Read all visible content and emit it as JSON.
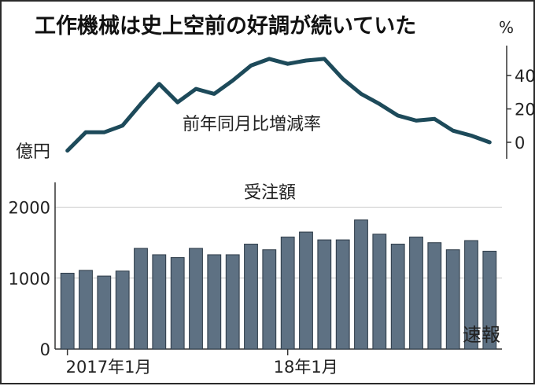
{
  "title": "工作機械は史上空前の好調が続いていた",
  "title_unit": "%",
  "colors": {
    "line": "#1d4a5a",
    "bar": "#5e7183",
    "bar_edge": "#2c3a47",
    "axis": "#333333",
    "grid": "#c8c8c8"
  },
  "chart_data": [
    {
      "type": "line",
      "label": "前年同月比増減率",
      "unit": "%",
      "ylim": [
        -8,
        57
      ],
      "yticks": [
        "40",
        "20",
        "0"
      ],
      "x": [
        "2017-01",
        "2017-02",
        "2017-03",
        "2017-04",
        "2017-05",
        "2017-06",
        "2017-07",
        "2017-08",
        "2017-09",
        "2017-10",
        "2017-11",
        "2017-12",
        "2018-01",
        "2018-02",
        "2018-03",
        "2018-04",
        "2018-05",
        "2018-06",
        "2018-07",
        "2018-08",
        "2018-09",
        "2018-10",
        "2018-11",
        "2018-12"
      ],
      "values": [
        -5,
        6,
        6,
        10,
        23,
        35,
        24,
        32,
        29,
        37,
        46,
        50,
        47,
        49,
        50,
        38,
        29,
        23,
        16,
        13,
        14,
        7,
        4,
        0
      ]
    },
    {
      "type": "bar",
      "label": "受注額",
      "unit": "億円",
      "ylim": [
        0,
        2350
      ],
      "yticks": [
        "2000",
        "1000",
        "0"
      ],
      "x": [
        "2017-01",
        "2017-02",
        "2017-03",
        "2017-04",
        "2017-05",
        "2017-06",
        "2017-07",
        "2017-08",
        "2017-09",
        "2017-10",
        "2017-11",
        "2017-12",
        "2018-01",
        "2018-02",
        "2018-03",
        "2018-04",
        "2018-05",
        "2018-06",
        "2018-07",
        "2018-08",
        "2018-09",
        "2018-10",
        "2018-11",
        "2018-12"
      ],
      "values": [
        1070,
        1110,
        1030,
        1100,
        1420,
        1330,
        1290,
        1420,
        1330,
        1330,
        1480,
        1400,
        1580,
        1650,
        1540,
        1540,
        1820,
        1620,
        1480,
        1580,
        1500,
        1400,
        1530,
        1380
      ],
      "x_tick_labels": [
        "2017年1月",
        "18年1月"
      ],
      "last_bar_note": "速報"
    }
  ],
  "unit_yen": "億円"
}
